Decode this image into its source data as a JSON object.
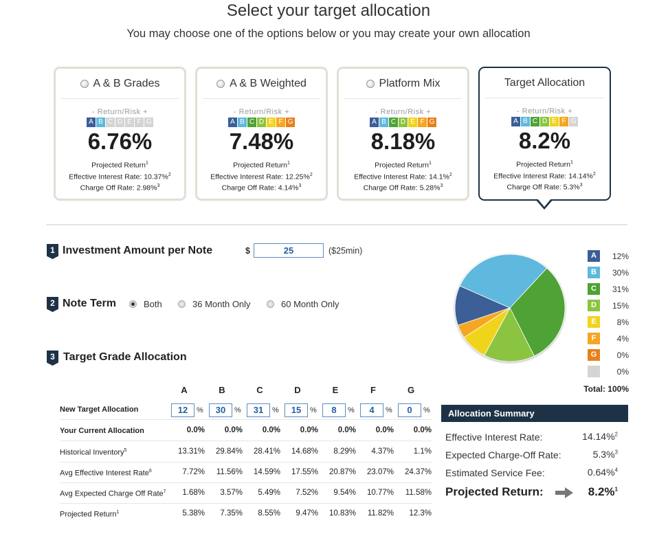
{
  "header": {
    "title": "Select your target allocation",
    "subtitle": "You may choose one of the options below or you may create your own allocation"
  },
  "grade_letters": [
    "A",
    "B",
    "C",
    "D",
    "E",
    "F",
    "G"
  ],
  "grade_colors": {
    "A": "#3b5e96",
    "B": "#5fb8dd",
    "C": "#4fa236",
    "D": "#8bc43f",
    "E": "#f0d41d",
    "F": "#f5a623",
    "G": "#e8801b",
    "off": "#d4d4d4"
  },
  "cards": [
    {
      "name": "A & B Grades",
      "return_risk": "-   Return/Risk   +",
      "active_grades": 2,
      "return": "6.76%",
      "projected_label": "Projected Return",
      "interest": "Effective Interest Rate: 10.37%",
      "chargeoff": "Charge Off Rate: 2.98%",
      "selected": false
    },
    {
      "name": "A & B Weighted",
      "return_risk": "-   Return/Risk   +",
      "active_grades": 7,
      "return": "7.48%",
      "projected_label": "Projected Return",
      "interest": "Effective Interest Rate: 12.25%",
      "chargeoff": "Charge Off Rate: 4.14%",
      "selected": false
    },
    {
      "name": "Platform Mix",
      "return_risk": "-   Return/Risk   +",
      "active_grades": 7,
      "return": "8.18%",
      "projected_label": "Projected Return",
      "interest": "Effective Interest Rate: 14.1%",
      "chargeoff": "Charge Off Rate: 5.28%",
      "selected": false
    },
    {
      "name": "Target Allocation",
      "return_risk": "-   Return/Risk   +",
      "active_grades": 6,
      "return": "8.2%",
      "projected_label": "Projected Return",
      "interest": "Effective Interest Rate: 14.14%",
      "chargeoff": "Charge Off Rate: 5.3%",
      "selected": true
    }
  ],
  "steps": {
    "s1": {
      "num": "1",
      "label": "Investment Amount per Note",
      "currency": "$",
      "amount": "25",
      "min_note": "($25min)"
    },
    "s2": {
      "num": "2",
      "label": "Note Term",
      "options": [
        "Both",
        "36 Month Only",
        "60 Month Only"
      ],
      "selected": "Both"
    },
    "s3": {
      "num": "3",
      "label": "Target Grade Allocation"
    }
  },
  "table": {
    "grades": [
      "A",
      "B",
      "C",
      "D",
      "E",
      "F",
      "G"
    ],
    "rows": {
      "new_target": {
        "label": "New Target Allocation",
        "values": [
          "12",
          "30",
          "31",
          "15",
          "8",
          "4",
          "0"
        ],
        "unit": "%"
      },
      "current": {
        "label": "Your Current Allocation",
        "values": [
          "0.0%",
          "0.0%",
          "0.0%",
          "0.0%",
          "0.0%",
          "0.0%",
          "0.0%"
        ]
      },
      "historical": {
        "label": "Historical Inventory",
        "sup": "5",
        "values": [
          "13.31%",
          "29.84%",
          "28.41%",
          "14.68%",
          "8.29%",
          "4.37%",
          "1.1%"
        ]
      },
      "avg_interest": {
        "label": "Avg Effective Interest Rate",
        "sup": "6",
        "values": [
          "7.72%",
          "11.56%",
          "14.59%",
          "17.55%",
          "20.87%",
          "23.07%",
          "24.37%"
        ]
      },
      "avg_chargeoff": {
        "label": "Avg Expected Charge Off Rate",
        "sup": "7",
        "values": [
          "1.68%",
          "3.57%",
          "5.49%",
          "7.52%",
          "9.54%",
          "10.77%",
          "11.58%"
        ]
      },
      "projected": {
        "label": "Projected Return",
        "sup": "1",
        "values": [
          "5.38%",
          "7.35%",
          "8.55%",
          "9.47%",
          "10.83%",
          "11.82%",
          "12.3%"
        ]
      }
    }
  },
  "legend": {
    "items": [
      {
        "grade": "A",
        "value": "12%"
      },
      {
        "grade": "B",
        "value": "30%"
      },
      {
        "grade": "C",
        "value": "31%"
      },
      {
        "grade": "D",
        "value": "15%"
      },
      {
        "grade": "E",
        "value": "8%"
      },
      {
        "grade": "F",
        "value": "4%"
      },
      {
        "grade": "G",
        "value": "0%"
      },
      {
        "grade": "",
        "value": "0%"
      }
    ],
    "total": "Total: 100%"
  },
  "pie": {
    "slices": [
      12,
      30,
      31,
      15,
      8,
      4,
      0
    ]
  },
  "summary": {
    "title": "Allocation Summary",
    "interest_label": "Effective Interest Rate:",
    "interest_value": "14.14%",
    "interest_sup": "2",
    "chargeoff_label": "Expected Charge-Off Rate:",
    "chargeoff_value": "5.3%",
    "chargeoff_sup": "3",
    "fee_label": "Estimated Service Fee:",
    "fee_value": "0.64%",
    "fee_sup": "4",
    "projected_label": "Projected Return:",
    "projected_value": "8.2%",
    "projected_sup": "1"
  }
}
